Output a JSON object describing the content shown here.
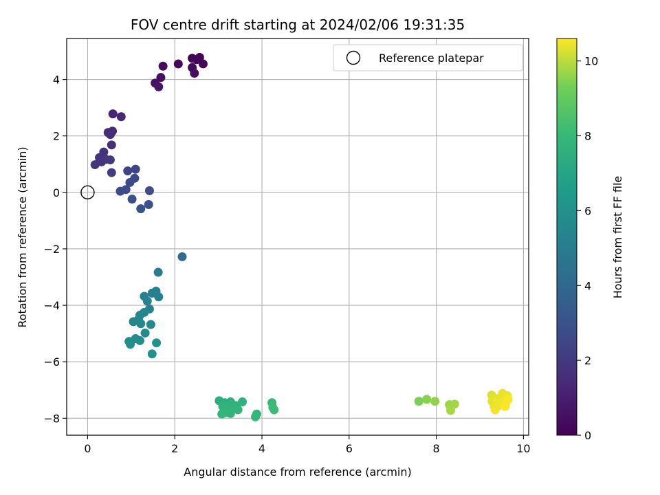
{
  "chart_data": {
    "type": "scatter",
    "title": "FOV centre drift starting at 2024/02/06 19:31:35",
    "xlabel": "Angular distance from reference (arcmin)",
    "ylabel": "Rotation from reference (arcmin)",
    "xlim": [
      -0.48,
      10.12
    ],
    "ylim": [
      -8.6,
      5.45
    ],
    "xticks": [
      0,
      2,
      4,
      6,
      8,
      10
    ],
    "yticks": [
      -8,
      -6,
      -4,
      -2,
      0,
      2,
      4
    ],
    "grid": true,
    "legend": {
      "placement": "upper-right",
      "entries": [
        "Reference platepar"
      ]
    },
    "reference_point": {
      "x": 0,
      "y": 0,
      "label": "Reference platepar"
    },
    "colormap": "viridis",
    "colorbar": {
      "label": "Hours from first FF file",
      "range": [
        0,
        10.6
      ],
      "ticks": [
        0,
        2,
        4,
        6,
        8,
        10
      ]
    },
    "points": [
      {
        "x": 2.4,
        "y": 4.75,
        "c": 0.05
      },
      {
        "x": 2.57,
        "y": 4.78,
        "c": 0.1
      },
      {
        "x": 2.5,
        "y": 4.7,
        "c": 0.15
      },
      {
        "x": 2.65,
        "y": 4.55,
        "c": 0.2
      },
      {
        "x": 2.08,
        "y": 4.55,
        "c": 0.25
      },
      {
        "x": 2.4,
        "y": 4.42,
        "c": 0.3
      },
      {
        "x": 2.45,
        "y": 4.22,
        "c": 0.35
      },
      {
        "x": 1.73,
        "y": 4.47,
        "c": 0.4
      },
      {
        "x": 1.68,
        "y": 4.07,
        "c": 0.5
      },
      {
        "x": 1.55,
        "y": 3.87,
        "c": 0.6
      },
      {
        "x": 1.63,
        "y": 3.74,
        "c": 0.7
      },
      {
        "x": 0.58,
        "y": 2.78,
        "c": 1.2
      },
      {
        "x": 0.77,
        "y": 2.68,
        "c": 1.3
      },
      {
        "x": 0.47,
        "y": 2.12,
        "c": 1.4
      },
      {
        "x": 0.57,
        "y": 2.17,
        "c": 1.45
      },
      {
        "x": 0.52,
        "y": 2.05,
        "c": 1.5
      },
      {
        "x": 0.55,
        "y": 1.68,
        "c": 1.6
      },
      {
        "x": 0.37,
        "y": 1.43,
        "c": 1.7
      },
      {
        "x": 0.27,
        "y": 1.23,
        "c": 1.75
      },
      {
        "x": 0.32,
        "y": 1.08,
        "c": 1.8
      },
      {
        "x": 0.42,
        "y": 1.17,
        "c": 1.85
      },
      {
        "x": 0.52,
        "y": 1.15,
        "c": 1.9
      },
      {
        "x": 0.17,
        "y": 0.98,
        "c": 1.95
      },
      {
        "x": 0.55,
        "y": 0.7,
        "c": 2.1
      },
      {
        "x": 0.92,
        "y": 0.76,
        "c": 2.4
      },
      {
        "x": 1.1,
        "y": 0.82,
        "c": 2.5
      },
      {
        "x": 1.08,
        "y": 0.5,
        "c": 2.6
      },
      {
        "x": 0.97,
        "y": 0.35,
        "c": 2.65
      },
      {
        "x": 0.88,
        "y": 0.1,
        "c": 2.7
      },
      {
        "x": 0.75,
        "y": 0.04,
        "c": 2.75
      },
      {
        "x": 1.42,
        "y": 0.06,
        "c": 2.8
      },
      {
        "x": 1.02,
        "y": -0.24,
        "c": 2.85
      },
      {
        "x": 1.4,
        "y": -0.43,
        "c": 2.9
      },
      {
        "x": 1.22,
        "y": -0.58,
        "c": 2.95
      },
      {
        "x": 2.17,
        "y": -2.28,
        "c": 4.2
      },
      {
        "x": 1.62,
        "y": -2.83,
        "c": 5.0
      },
      {
        "x": 1.48,
        "y": -3.57,
        "c": 5.1
      },
      {
        "x": 1.57,
        "y": -3.5,
        "c": 5.15
      },
      {
        "x": 1.3,
        "y": -3.68,
        "c": 5.2
      },
      {
        "x": 1.63,
        "y": -3.7,
        "c": 5.25
      },
      {
        "x": 1.37,
        "y": -3.85,
        "c": 5.3
      },
      {
        "x": 1.42,
        "y": -4.13,
        "c": 5.35
      },
      {
        "x": 1.3,
        "y": -4.25,
        "c": 5.4
      },
      {
        "x": 1.2,
        "y": -4.35,
        "c": 5.45
      },
      {
        "x": 1.17,
        "y": -4.5,
        "c": 5.5
      },
      {
        "x": 1.05,
        "y": -4.58,
        "c": 5.55
      },
      {
        "x": 1.22,
        "y": -4.65,
        "c": 5.6
      },
      {
        "x": 1.45,
        "y": -4.68,
        "c": 5.65
      },
      {
        "x": 1.32,
        "y": -4.98,
        "c": 5.7
      },
      {
        "x": 1.1,
        "y": -5.18,
        "c": 5.75
      },
      {
        "x": 0.95,
        "y": -5.28,
        "c": 5.8
      },
      {
        "x": 1.2,
        "y": -5.25,
        "c": 5.85
      },
      {
        "x": 0.98,
        "y": -5.38,
        "c": 5.9
      },
      {
        "x": 1.58,
        "y": -5.33,
        "c": 5.95
      },
      {
        "x": 1.48,
        "y": -5.72,
        "c": 6.0
      },
      {
        "x": 3.02,
        "y": -7.38,
        "c": 7.5
      },
      {
        "x": 3.15,
        "y": -7.45,
        "c": 7.55
      },
      {
        "x": 3.28,
        "y": -7.42,
        "c": 7.6
      },
      {
        "x": 3.55,
        "y": -7.42,
        "c": 7.65
      },
      {
        "x": 3.4,
        "y": -7.55,
        "c": 7.7
      },
      {
        "x": 3.1,
        "y": -7.58,
        "c": 7.72
      },
      {
        "x": 3.22,
        "y": -7.62,
        "c": 7.74
      },
      {
        "x": 3.35,
        "y": -7.65,
        "c": 7.76
      },
      {
        "x": 3.45,
        "y": -7.7,
        "c": 7.78
      },
      {
        "x": 3.18,
        "y": -7.8,
        "c": 7.8
      },
      {
        "x": 3.08,
        "y": -7.85,
        "c": 7.82
      },
      {
        "x": 3.28,
        "y": -7.83,
        "c": 7.84
      },
      {
        "x": 3.88,
        "y": -7.85,
        "c": 7.9
      },
      {
        "x": 3.85,
        "y": -7.95,
        "c": 7.95
      },
      {
        "x": 4.23,
        "y": -7.45,
        "c": 8.05
      },
      {
        "x": 4.25,
        "y": -7.62,
        "c": 8.1
      },
      {
        "x": 4.28,
        "y": -7.7,
        "c": 8.15
      },
      {
        "x": 7.6,
        "y": -7.4,
        "c": 9.4
      },
      {
        "x": 7.78,
        "y": -7.33,
        "c": 9.5
      },
      {
        "x": 7.97,
        "y": -7.4,
        "c": 9.6
      },
      {
        "x": 8.3,
        "y": -7.52,
        "c": 9.7
      },
      {
        "x": 8.42,
        "y": -7.5,
        "c": 9.75
      },
      {
        "x": 8.33,
        "y": -7.72,
        "c": 9.8
      },
      {
        "x": 9.27,
        "y": -7.18,
        "c": 10.3
      },
      {
        "x": 9.52,
        "y": -7.12,
        "c": 10.4
      },
      {
        "x": 9.63,
        "y": -7.2,
        "c": 10.45
      },
      {
        "x": 9.42,
        "y": -7.3,
        "c": 10.4
      },
      {
        "x": 9.55,
        "y": -7.35,
        "c": 10.5
      },
      {
        "x": 9.65,
        "y": -7.33,
        "c": 10.55
      },
      {
        "x": 9.28,
        "y": -7.4,
        "c": 10.35
      },
      {
        "x": 9.38,
        "y": -7.45,
        "c": 10.45
      },
      {
        "x": 9.5,
        "y": -7.48,
        "c": 10.5
      },
      {
        "x": 9.6,
        "y": -7.45,
        "c": 10.55
      },
      {
        "x": 9.33,
        "y": -7.58,
        "c": 10.4
      },
      {
        "x": 9.43,
        "y": -7.55,
        "c": 10.45
      },
      {
        "x": 9.58,
        "y": -7.58,
        "c": 10.55
      },
      {
        "x": 9.35,
        "y": -7.7,
        "c": 10.5
      }
    ]
  }
}
